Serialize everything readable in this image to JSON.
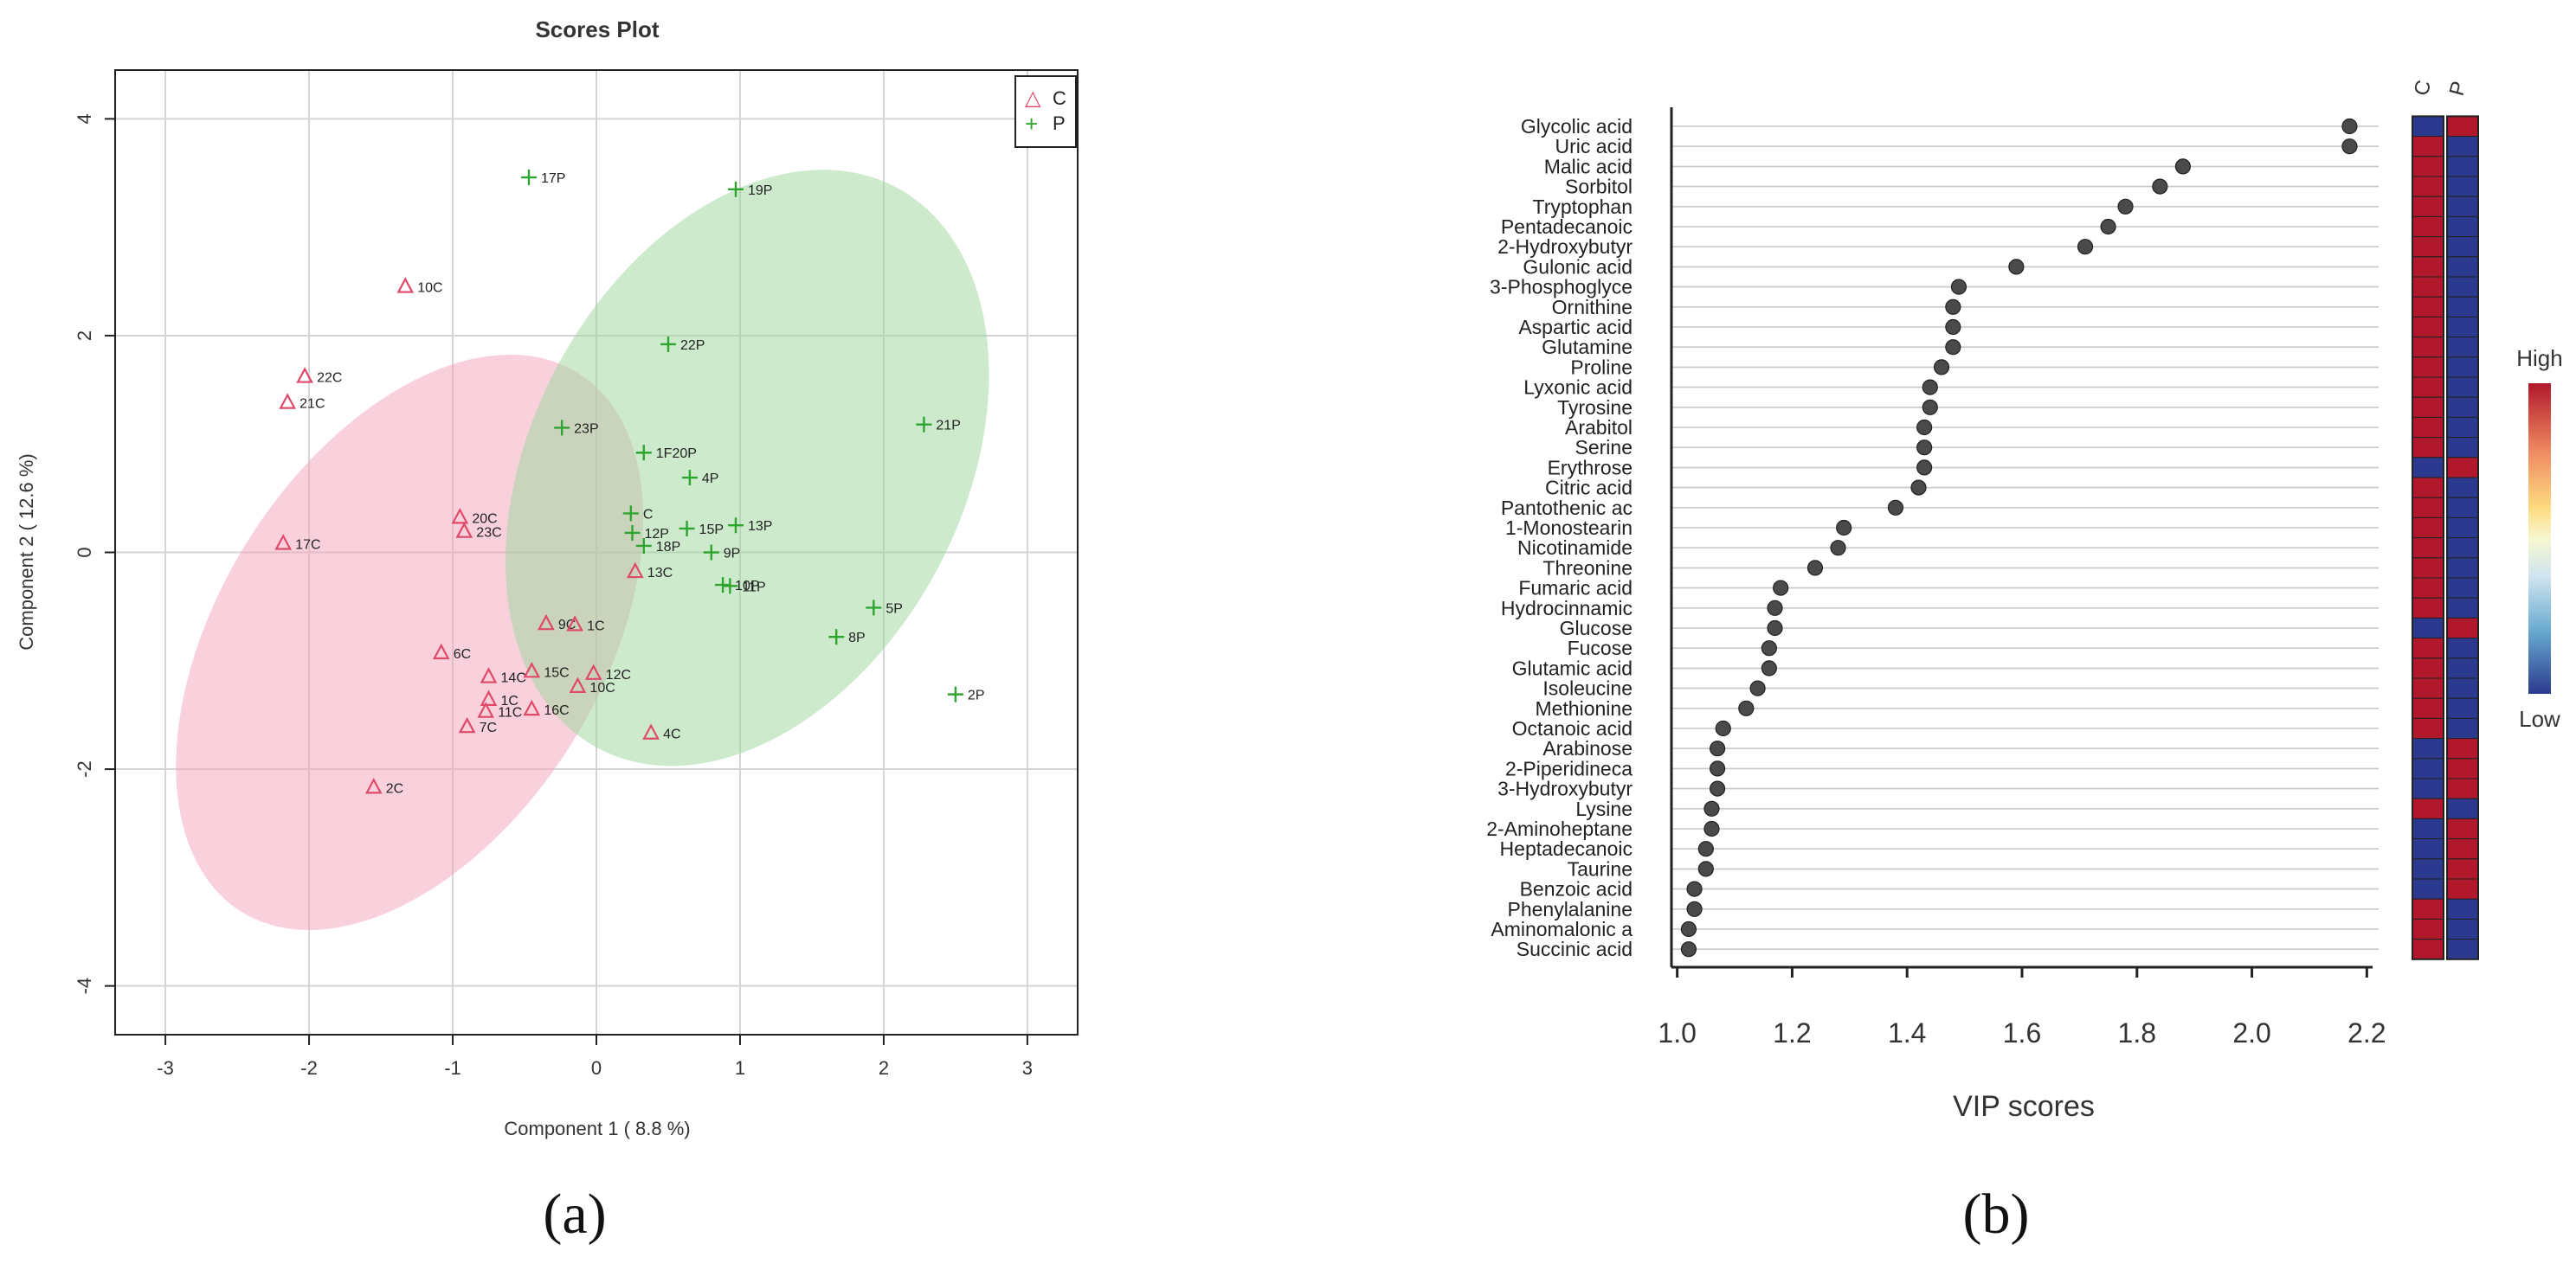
{
  "panel_labels": {
    "a": "(a)",
    "b": "(b)"
  },
  "colors": {
    "control": "#e04a6a",
    "patient": "#2ea52e",
    "ellipse_c": "#f4a6bb",
    "ellipse_p": "#9fd69f",
    "high": "#b2182b",
    "low": "#2b3a8f"
  },
  "chart_data": [
    {
      "type": "scatter",
      "title": "Scores Plot",
      "xlabel": "Component 1 ( 8.8 %)",
      "ylabel": "Component 2 ( 12.6 %)",
      "xlim": [
        -3.35,
        3.35
      ],
      "ylim": [
        -4.45,
        4.45
      ],
      "xticks": [
        -3,
        -2,
        -1,
        0,
        1,
        2,
        3
      ],
      "yticks": [
        -4,
        -2,
        0,
        2,
        4
      ],
      "xtick_labels": [
        "-3",
        "-2",
        "-1",
        "0",
        "1",
        "2",
        "3"
      ],
      "ytick_labels": [
        "-4",
        "-2",
        "0",
        "2",
        "4"
      ],
      "legend": {
        "placement": "top-right",
        "entries": [
          {
            "name": "C",
            "marker": "△"
          },
          {
            "name": "P",
            "marker": "+"
          }
        ]
      },
      "ellipses": [
        {
          "group": "C",
          "center": [
            -1.3,
            -0.83
          ],
          "semi_axes": [
            1.33,
            2.93
          ],
          "angle_deg": 32
        },
        {
          "group": "P",
          "center": [
            1.05,
            0.78
          ],
          "semi_axes": [
            1.5,
            2.93
          ],
          "angle_deg": 28
        }
      ],
      "series": [
        {
          "name": "C",
          "marker": "triangle",
          "points": [
            {
              "label": "10C",
              "x": -1.33,
              "y": 2.45
            },
            {
              "label": "22C",
              "x": -2.03,
              "y": 1.62
            },
            {
              "label": "21C",
              "x": -2.15,
              "y": 1.38
            },
            {
              "label": "17C",
              "x": -2.18,
              "y": 0.08
            },
            {
              "label": "20C",
              "x": -0.95,
              "y": 0.32
            },
            {
              "label": "23C",
              "x": -0.92,
              "y": 0.19
            },
            {
              "label": "13C",
              "x": 0.27,
              "y": -0.18
            },
            {
              "label": "9C",
              "x": -0.35,
              "y": -0.66
            },
            {
              "label": "1C",
              "x": -0.15,
              "y": -0.67
            },
            {
              "label": "6C",
              "x": -1.08,
              "y": -0.93
            },
            {
              "label": "14C",
              "x": -0.75,
              "y": -1.15
            },
            {
              "label": "15C",
              "x": -0.45,
              "y": -1.1
            },
            {
              "label": "12C",
              "x": -0.02,
              "y": -1.12
            },
            {
              "label": "10C",
              "x": -0.13,
              "y": -1.24
            },
            {
              "label": "1C",
              "x": -0.75,
              "y": -1.36
            },
            {
              "label": "11C",
              "x": -0.77,
              "y": -1.47
            },
            {
              "label": "16C",
              "x": -0.45,
              "y": -1.45
            },
            {
              "label": "7C",
              "x": -0.9,
              "y": -1.61
            },
            {
              "label": "4C",
              "x": 0.38,
              "y": -1.67
            },
            {
              "label": "2C",
              "x": -1.55,
              "y": -2.17
            }
          ]
        },
        {
          "name": "P",
          "marker": "plus",
          "points": [
            {
              "label": "17P",
              "x": -0.47,
              "y": 3.46
            },
            {
              "label": "19P",
              "x": 0.97,
              "y": 3.35
            },
            {
              "label": "22P",
              "x": 0.5,
              "y": 1.92
            },
            {
              "label": "21P",
              "x": 2.28,
              "y": 1.18
            },
            {
              "label": "23P",
              "x": -0.24,
              "y": 1.15
            },
            {
              "label": "1F20P",
              "x": 0.33,
              "y": 0.92
            },
            {
              "label": "4P",
              "x": 0.65,
              "y": 0.69
            },
            {
              "label": "C",
              "x": 0.24,
              "y": 0.36
            },
            {
              "label": "12P",
              "x": 0.25,
              "y": 0.18
            },
            {
              "label": "15P",
              "x": 0.63,
              "y": 0.22
            },
            {
              "label": "13P",
              "x": 0.97,
              "y": 0.25
            },
            {
              "label": "18P",
              "x": 0.33,
              "y": 0.06
            },
            {
              "label": "9P",
              "x": 0.8,
              "y": 0.0
            },
            {
              "label": "10P",
              "x": 0.88,
              "y": -0.3
            },
            {
              "label": "11P",
              "x": 0.93,
              "y": -0.31
            },
            {
              "label": "5P",
              "x": 1.93,
              "y": -0.51
            },
            {
              "label": "8P",
              "x": 1.67,
              "y": -0.78
            },
            {
              "label": "2P",
              "x": 2.5,
              "y": -1.31
            }
          ]
        }
      ]
    },
    {
      "type": "dot",
      "xlabel": "VIP scores",
      "xlim": [
        0.99,
        2.21
      ],
      "xticks": [
        1.0,
        1.2,
        1.4,
        1.6,
        1.8,
        2.0,
        2.2
      ],
      "xtick_labels": [
        "1.0",
        "1.2",
        "1.4",
        "1.6",
        "1.8",
        "2.0",
        "2.2"
      ],
      "heatmap_columns": [
        "C",
        "P"
      ],
      "colorbar": {
        "high_label": "High",
        "low_label": "Low"
      },
      "features": [
        {
          "name": "Glycolic acid",
          "vip": 2.17,
          "c": "low",
          "p": "high"
        },
        {
          "name": "Uric acid",
          "vip": 2.17,
          "c": "high",
          "p": "low"
        },
        {
          "name": "Malic acid",
          "vip": 1.88,
          "c": "high",
          "p": "low"
        },
        {
          "name": "Sorbitol",
          "vip": 1.84,
          "c": "high",
          "p": "low"
        },
        {
          "name": "Tryptophan",
          "vip": 1.78,
          "c": "high",
          "p": "low"
        },
        {
          "name": "Pentadecanoic",
          "vip": 1.75,
          "c": "high",
          "p": "low"
        },
        {
          "name": "2-Hydroxybutyr",
          "vip": 1.71,
          "c": "high",
          "p": "low"
        },
        {
          "name": "Gulonic acid",
          "vip": 1.59,
          "c": "high",
          "p": "low"
        },
        {
          "name": "3-Phosphoglyce",
          "vip": 1.49,
          "c": "high",
          "p": "low"
        },
        {
          "name": "Ornithine",
          "vip": 1.48,
          "c": "high",
          "p": "low"
        },
        {
          "name": "Aspartic acid",
          "vip": 1.48,
          "c": "high",
          "p": "low"
        },
        {
          "name": "Glutamine",
          "vip": 1.48,
          "c": "high",
          "p": "low"
        },
        {
          "name": "Proline",
          "vip": 1.46,
          "c": "high",
          "p": "low"
        },
        {
          "name": "Lyxonic acid",
          "vip": 1.44,
          "c": "high",
          "p": "low"
        },
        {
          "name": "Tyrosine",
          "vip": 1.44,
          "c": "high",
          "p": "low"
        },
        {
          "name": "Arabitol",
          "vip": 1.43,
          "c": "high",
          "p": "low"
        },
        {
          "name": "Serine",
          "vip": 1.43,
          "c": "high",
          "p": "low"
        },
        {
          "name": "Erythrose",
          "vip": 1.43,
          "c": "low",
          "p": "high"
        },
        {
          "name": "Citric acid",
          "vip": 1.42,
          "c": "high",
          "p": "low"
        },
        {
          "name": "Pantothenic ac",
          "vip": 1.38,
          "c": "high",
          "p": "low"
        },
        {
          "name": "1-Monostearin",
          "vip": 1.29,
          "c": "high",
          "p": "low"
        },
        {
          "name": "Nicotinamide",
          "vip": 1.28,
          "c": "high",
          "p": "low"
        },
        {
          "name": "Threonine",
          "vip": 1.24,
          "c": "high",
          "p": "low"
        },
        {
          "name": "Fumaric acid",
          "vip": 1.18,
          "c": "high",
          "p": "low"
        },
        {
          "name": "Hydrocinnamic",
          "vip": 1.17,
          "c": "high",
          "p": "low"
        },
        {
          "name": "Glucose",
          "vip": 1.17,
          "c": "low",
          "p": "high"
        },
        {
          "name": "Fucose",
          "vip": 1.16,
          "c": "high",
          "p": "low"
        },
        {
          "name": "Glutamic acid",
          "vip": 1.16,
          "c": "high",
          "p": "low"
        },
        {
          "name": "Isoleucine",
          "vip": 1.14,
          "c": "high",
          "p": "low"
        },
        {
          "name": "Methionine",
          "vip": 1.12,
          "c": "high",
          "p": "low"
        },
        {
          "name": "Octanoic acid",
          "vip": 1.08,
          "c": "high",
          "p": "low"
        },
        {
          "name": "Arabinose",
          "vip": 1.07,
          "c": "low",
          "p": "high"
        },
        {
          "name": "2-Piperidineca",
          "vip": 1.07,
          "c": "low",
          "p": "high"
        },
        {
          "name": "3-Hydroxybutyr",
          "vip": 1.07,
          "c": "low",
          "p": "high"
        },
        {
          "name": "Lysine",
          "vip": 1.06,
          "c": "high",
          "p": "low"
        },
        {
          "name": "2-Aminoheptane",
          "vip": 1.06,
          "c": "low",
          "p": "high"
        },
        {
          "name": "Heptadecanoic",
          "vip": 1.05,
          "c": "low",
          "p": "high"
        },
        {
          "name": "Taurine",
          "vip": 1.05,
          "c": "low",
          "p": "high"
        },
        {
          "name": "Benzoic acid",
          "vip": 1.03,
          "c": "low",
          "p": "high"
        },
        {
          "name": "Phenylalanine",
          "vip": 1.03,
          "c": "high",
          "p": "low"
        },
        {
          "name": "Aminomalonic a",
          "vip": 1.02,
          "c": "high",
          "p": "low"
        },
        {
          "name": "Succinic acid",
          "vip": 1.02,
          "c": "high",
          "p": "low"
        }
      ]
    }
  ]
}
